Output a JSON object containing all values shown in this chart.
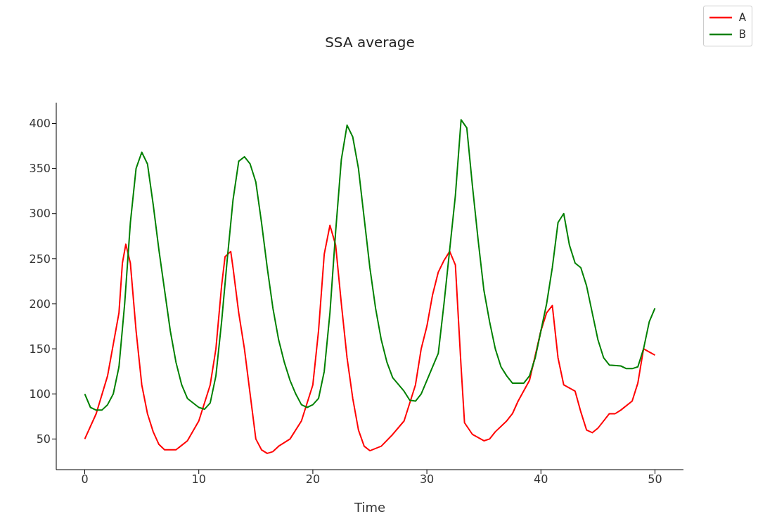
{
  "chart_data": {
    "type": "line",
    "title": "SSA average",
    "xlabel": "Time",
    "xlim": [
      -2.5,
      52.5
    ],
    "xticks": [
      0,
      10,
      20,
      30,
      40,
      50
    ],
    "ylim": [
      16,
      423
    ],
    "yticks": [
      50,
      100,
      150,
      200,
      250,
      300,
      350,
      400
    ],
    "grid": false,
    "legend": "top right",
    "marker": "none",
    "line_style": "solid",
    "series": [
      {
        "name": "A",
        "color": "#ff0000",
        "x": [
          0,
          1,
          2,
          3,
          3.3,
          3.6,
          4,
          4.5,
          5,
          5.5,
          6,
          6.5,
          7,
          8,
          9,
          10,
          11,
          11.5,
          12,
          12.3,
          12.8,
          13,
          13.5,
          14,
          14.5,
          15,
          15.5,
          16,
          16.5,
          17,
          18,
          19,
          20,
          20.5,
          21,
          21.5,
          22,
          22.5,
          23,
          23.5,
          24,
          24.5,
          25,
          26,
          27,
          28,
          29,
          29.5,
          30,
          30.5,
          31,
          31.5,
          32,
          32.5,
          33,
          33.3,
          34,
          35,
          35.5,
          36,
          37,
          37.5,
          38,
          39,
          40,
          40.5,
          41,
          41.5,
          42,
          43,
          43.5,
          44,
          44.5,
          45,
          46,
          46.5,
          47,
          48,
          48.5,
          49,
          50
        ],
        "values": [
          50,
          78,
          120,
          190,
          245,
          266,
          245,
          170,
          110,
          78,
          58,
          44,
          38,
          38,
          48,
          70,
          110,
          150,
          220,
          252,
          258,
          240,
          190,
          150,
          100,
          50,
          38,
          34,
          36,
          42,
          50,
          70,
          110,
          170,
          255,
          287,
          265,
          200,
          140,
          95,
          60,
          42,
          37,
          42,
          55,
          70,
          110,
          150,
          175,
          210,
          235,
          248,
          258,
          243,
          130,
          68,
          55,
          48,
          50,
          58,
          70,
          78,
          92,
          115,
          170,
          190,
          198,
          140,
          110,
          103,
          80,
          60,
          57,
          62,
          78,
          78,
          82,
          92,
          112,
          150,
          143
        ]
      },
      {
        "name": "B",
        "color": "#008000",
        "x": [
          0,
          0.5,
          1,
          1.5,
          2,
          2.5,
          3,
          3.5,
          4,
          4.5,
          5,
          5.5,
          6,
          6.5,
          7,
          7.5,
          8,
          8.5,
          9,
          10,
          10.5,
          11,
          11.5,
          12,
          12.5,
          13,
          13.5,
          14,
          14.5,
          15,
          15.5,
          16,
          16.5,
          17,
          17.5,
          18,
          18.5,
          19,
          19.5,
          20,
          20.5,
          21,
          21.5,
          22,
          22.5,
          23,
          23.5,
          24,
          24.5,
          25,
          25.5,
          26,
          26.5,
          27,
          28,
          28.5,
          29,
          29.5,
          30,
          31,
          31.5,
          32,
          32.5,
          33,
          33.5,
          34,
          34.5,
          35,
          35.5,
          36,
          36.5,
          37,
          37.5,
          38,
          38.5,
          39,
          39.5,
          40,
          40.5,
          41,
          41.5,
          42,
          42.5,
          43,
          43.5,
          44,
          44.5,
          45,
          45.5,
          46,
          47,
          47.5,
          48,
          48.5,
          49,
          49.5,
          50
        ],
        "values": [
          100,
          85,
          82,
          82,
          88,
          100,
          130,
          200,
          290,
          350,
          368,
          355,
          310,
          260,
          215,
          170,
          135,
          110,
          95,
          85,
          83,
          90,
          120,
          180,
          250,
          315,
          358,
          363,
          355,
          335,
          290,
          240,
          195,
          160,
          135,
          115,
          100,
          88,
          85,
          88,
          95,
          125,
          190,
          280,
          360,
          398,
          385,
          350,
          295,
          240,
          195,
          160,
          135,
          118,
          103,
          93,
          92,
          100,
          115,
          145,
          200,
          260,
          320,
          404,
          395,
          330,
          270,
          215,
          180,
          150,
          130,
          120,
          112,
          112,
          112,
          120,
          140,
          170,
          200,
          240,
          290,
          300,
          265,
          245,
          240,
          220,
          190,
          160,
          140,
          132,
          131,
          128,
          128,
          130,
          150,
          180,
          195
        ]
      }
    ]
  }
}
